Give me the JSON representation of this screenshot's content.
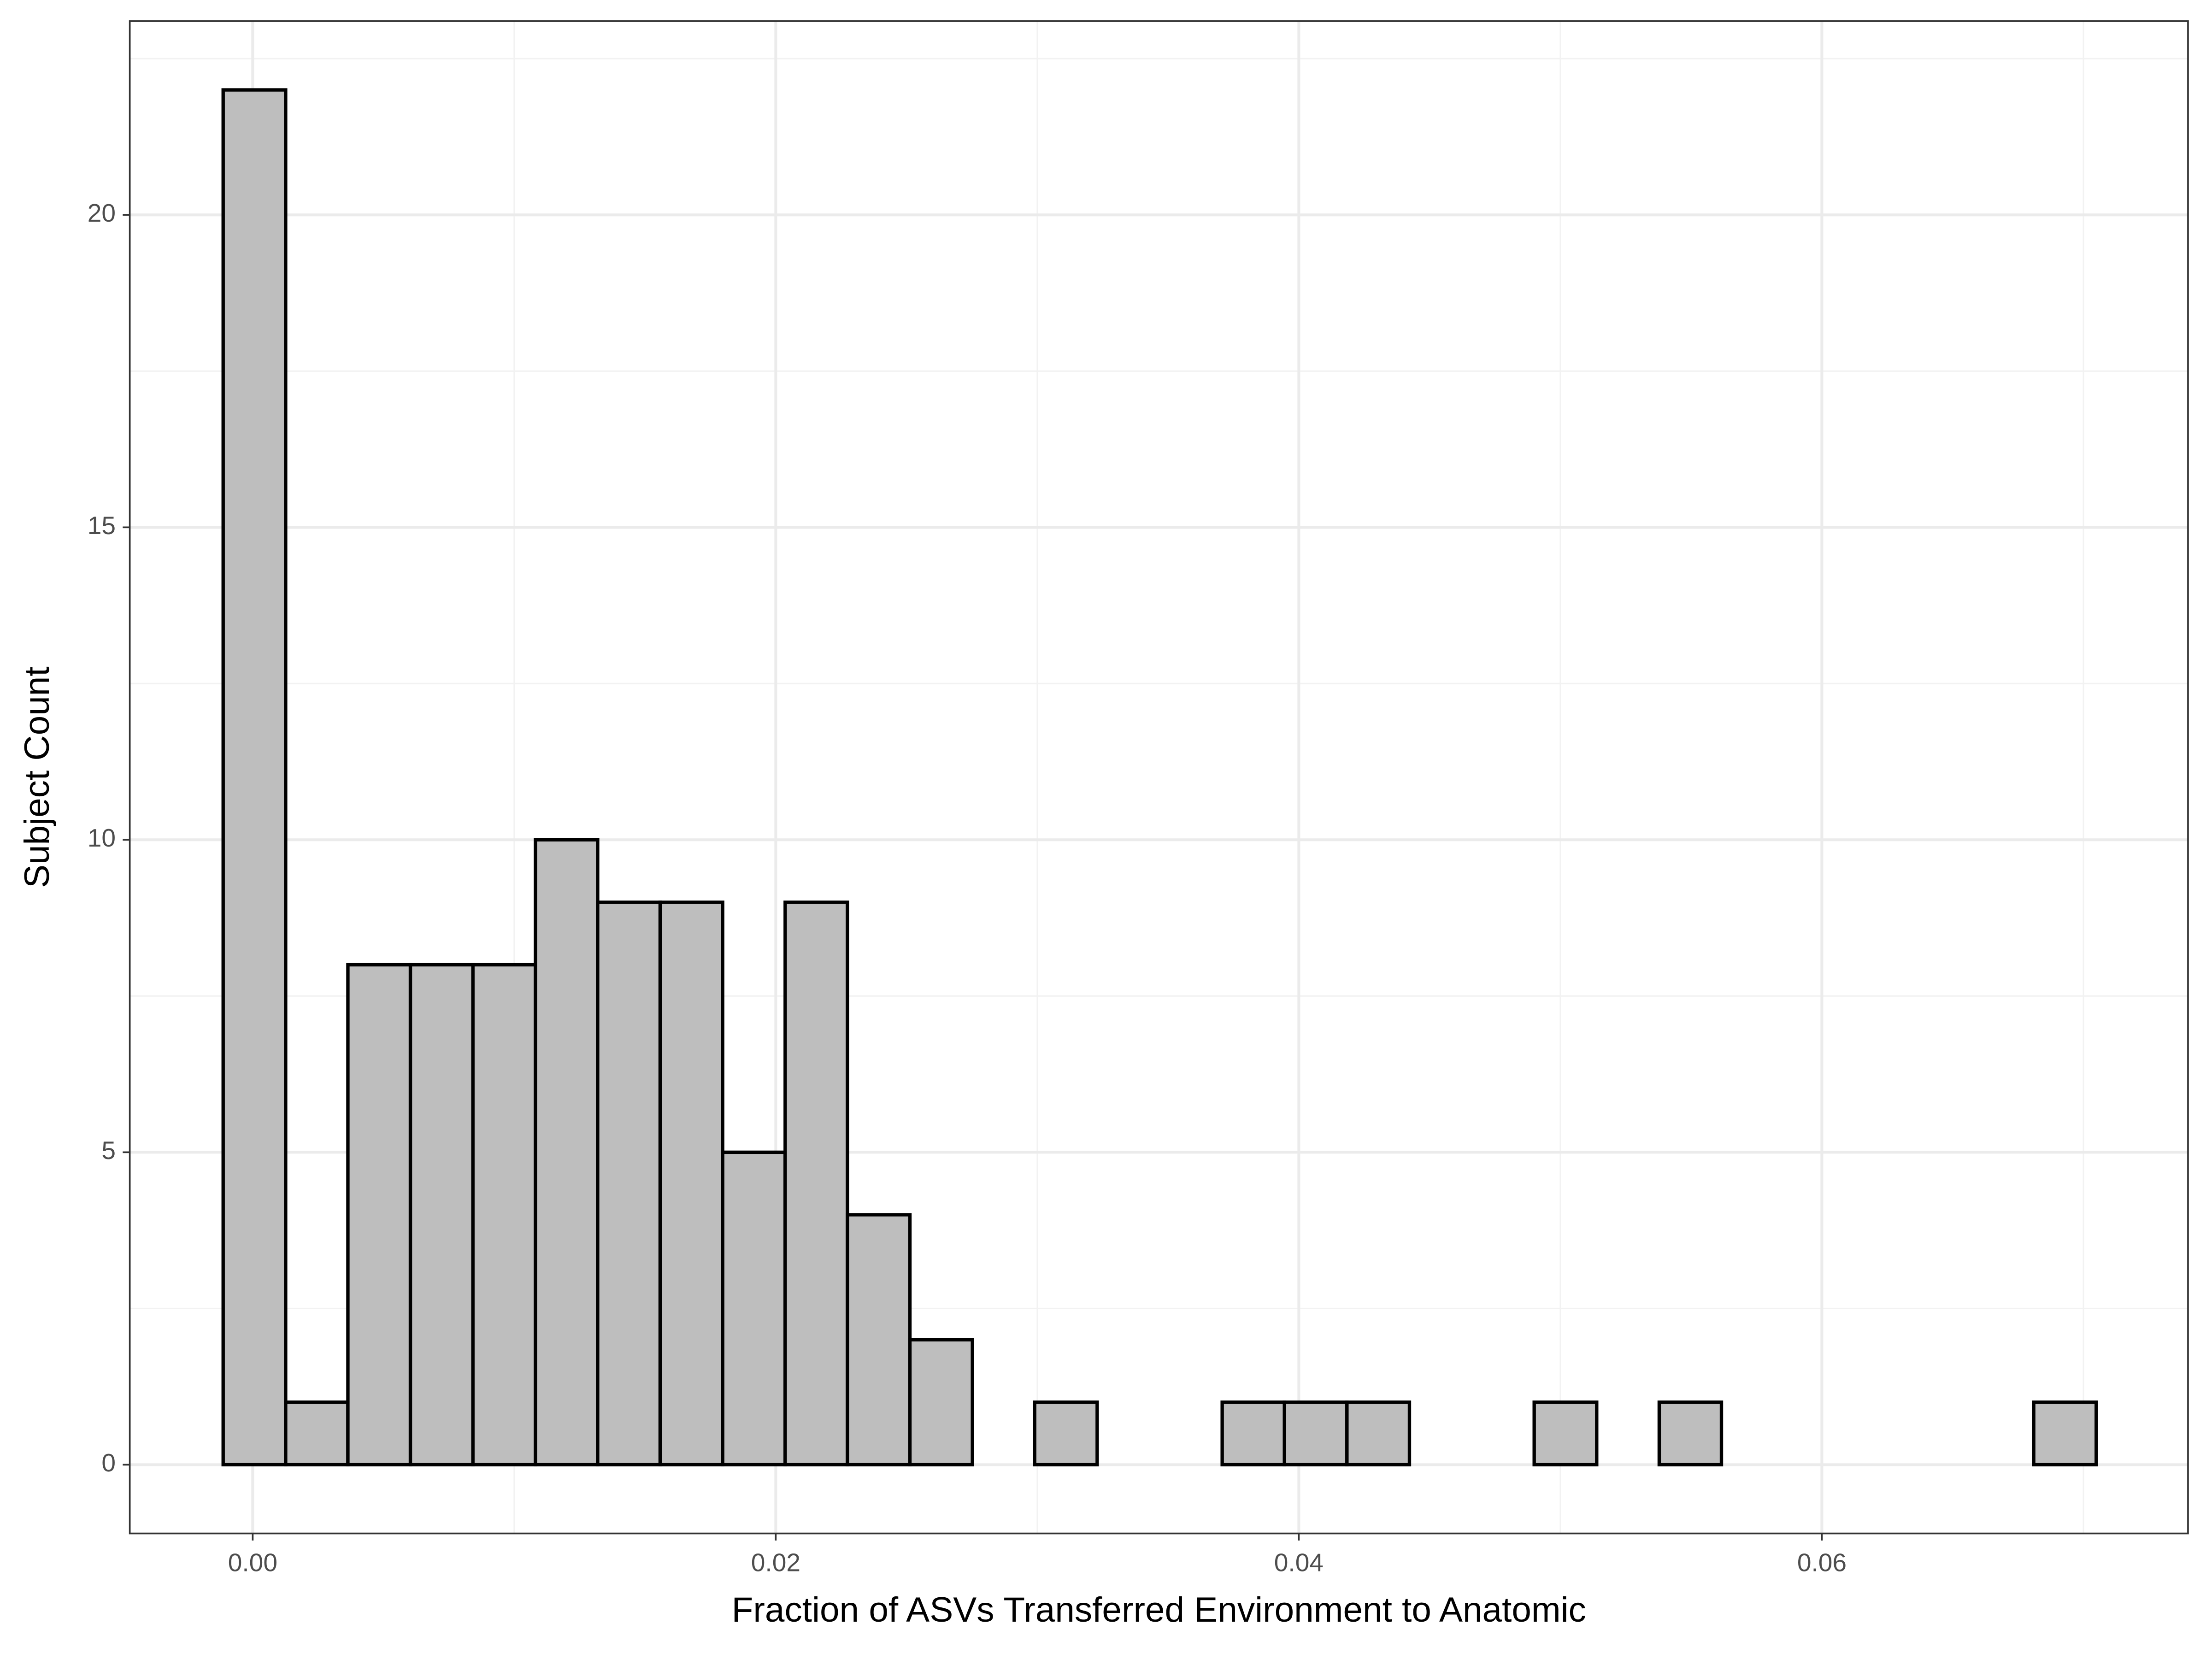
{
  "chart_data": {
    "type": "histogram",
    "x_label": "Fraction of ASVs Transferred Environment to Anatomic",
    "y_label": "Subject Count",
    "bins": [
      -0.00113,
      0.00126,
      0.00364,
      0.00603,
      0.00842,
      0.01081,
      0.01319,
      0.01558,
      0.01797,
      0.02036,
      0.02274,
      0.02513,
      0.02752,
      0.0299,
      0.03229,
      0.03468,
      0.03707,
      0.03945,
      0.04184,
      0.04423,
      0.04661,
      0.049,
      0.05139,
      0.05378,
      0.05616,
      0.05855,
      0.06094,
      0.06332,
      0.06571,
      0.0681,
      0.07049
    ],
    "values": [
      22,
      1,
      8,
      8,
      8,
      10,
      9,
      9,
      5,
      9,
      4,
      2,
      0,
      1,
      0,
      0,
      1,
      1,
      1,
      0,
      0,
      1,
      0,
      1,
      0,
      0,
      0,
      0,
      0,
      1
    ],
    "color": "#bebebe",
    "edge_color": "#000000",
    "xlim": [
      -0.0047,
      0.074
    ],
    "xticks": [
      {
        "value": 0,
        "label": "0.00"
      },
      0.02,
      0.04,
      0.06
    ],
    "ylim": [
      -1.1,
      23.1
    ],
    "yticks": [
      0,
      5,
      10,
      15,
      20
    ],
    "grid": true
  }
}
